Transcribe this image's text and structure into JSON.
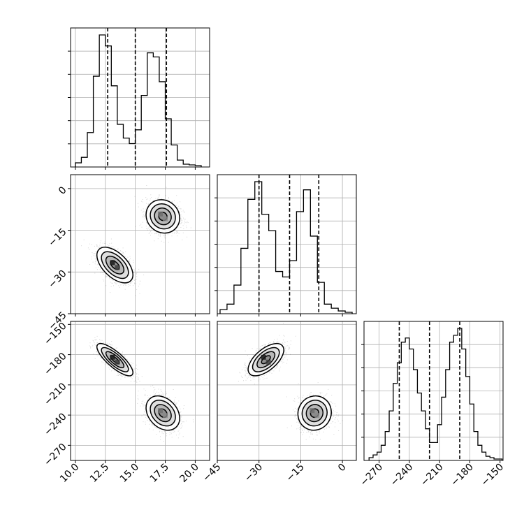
{
  "chart_data": {
    "type": "corner",
    "title": "",
    "variables": [
      {
        "ticks": [
          "10.0",
          "12.5",
          "15.0",
          "17.5",
          "20.0"
        ],
        "tick_values": [
          10.0,
          12.5,
          15.0,
          17.5,
          20.0
        ],
        "range": [
          9.6,
          21.2
        ],
        "quantiles": [
          12.7,
          15.0,
          17.6
        ],
        "histogram": {
          "edges": [
            10.0,
            10.5,
            11.0,
            11.5,
            12.0,
            12.5,
            13.0,
            13.5,
            14.0,
            14.5,
            15.0,
            15.5,
            16.0,
            16.5,
            17.0,
            17.5,
            18.0,
            18.5,
            19.0,
            19.5,
            20.0,
            20.5
          ],
          "counts": [
            0.02,
            0.06,
            0.24,
            0.65,
            0.95,
            0.87,
            0.58,
            0.3,
            0.2,
            0.16,
            0.26,
            0.51,
            0.82,
            0.79,
            0.61,
            0.34,
            0.15,
            0.04,
            0.01,
            0.005,
            0.0
          ]
        }
      },
      {
        "ticks": [
          "−45",
          "−30",
          "−15",
          "0"
        ],
        "tick_values": [
          -45,
          -30,
          -15,
          0
        ],
        "range": [
          -45,
          5
        ],
        "quantiles": [
          -30,
          -19,
          -8.5
        ],
        "histogram": {
          "edges": [
            -44,
            -41.5,
            -39,
            -36.5,
            -34,
            -31.5,
            -29,
            -26.5,
            -24,
            -21.5,
            -19,
            -16.5,
            -14,
            -11.5,
            -9,
            -6.5,
            -4,
            -1.5,
            1,
            3.5
          ],
          "counts": [
            0.02,
            0.06,
            0.2,
            0.47,
            0.83,
            0.96,
            0.72,
            0.6,
            0.3,
            0.26,
            0.38,
            0.74,
            0.9,
            0.56,
            0.22,
            0.06,
            0.03,
            0.01,
            0.0
          ]
        }
      },
      {
        "ticks": [
          "−270",
          "−240",
          "−210",
          "−180",
          "−150"
        ],
        "tick_values": [
          -270,
          -240,
          -210,
          -180,
          -150
        ],
        "range": [
          -285,
          -147
        ],
        "quantiles": [
          -250,
          -220,
          -190
        ],
        "histogram": {
          "edges": [
            -280,
            -276,
            -272,
            -268,
            -264,
            -260,
            -256,
            -252,
            -248,
            -244,
            -240,
            -236,
            -232,
            -228,
            -224,
            -220,
            -216,
            -212,
            -208,
            -204,
            -200,
            -196,
            -192,
            -188,
            -184,
            -180,
            -176,
            -172,
            -168,
            -164,
            -160,
            -156,
            -152,
            -148
          ],
          "counts": [
            0.01,
            0.03,
            0.05,
            0.1,
            0.2,
            0.35,
            0.55,
            0.7,
            0.85,
            0.88,
            0.8,
            0.65,
            0.48,
            0.35,
            0.22,
            0.12,
            0.12,
            0.25,
            0.45,
            0.65,
            0.85,
            0.9,
            0.95,
            0.8,
            0.6,
            0.4,
            0.2,
            0.1,
            0.05,
            0.02,
            0.01,
            0.0,
            0.0
          ]
        }
      }
    ],
    "clusters": [
      {
        "mean": [
          13.3,
          -27.5,
          -185
        ],
        "sd": [
          0.75,
          3.2,
          8.0
        ],
        "corr": [
          [
            1,
            -0.55,
            -0.8
          ],
          [
            -0.55,
            1,
            0.6
          ],
          [
            -0.8,
            0.6,
            1
          ]
        ]
      },
      {
        "mean": [
          17.3,
          -10,
          -238
        ],
        "sd": [
          0.7,
          3.0,
          8.5
        ],
        "corr": [
          [
            1,
            -0.1,
            -0.3
          ],
          [
            -0.1,
            1,
            0.05
          ],
          [
            -0.3,
            0.05,
            1
          ]
        ]
      }
    ],
    "contour_levels_sigma": [
      0.5,
      1.0,
      1.5,
      2.0
    ],
    "grid": true,
    "colors": {
      "hist": "#000000",
      "points": "#000000",
      "density": "#000000",
      "grid": "#b0b0b0"
    }
  }
}
